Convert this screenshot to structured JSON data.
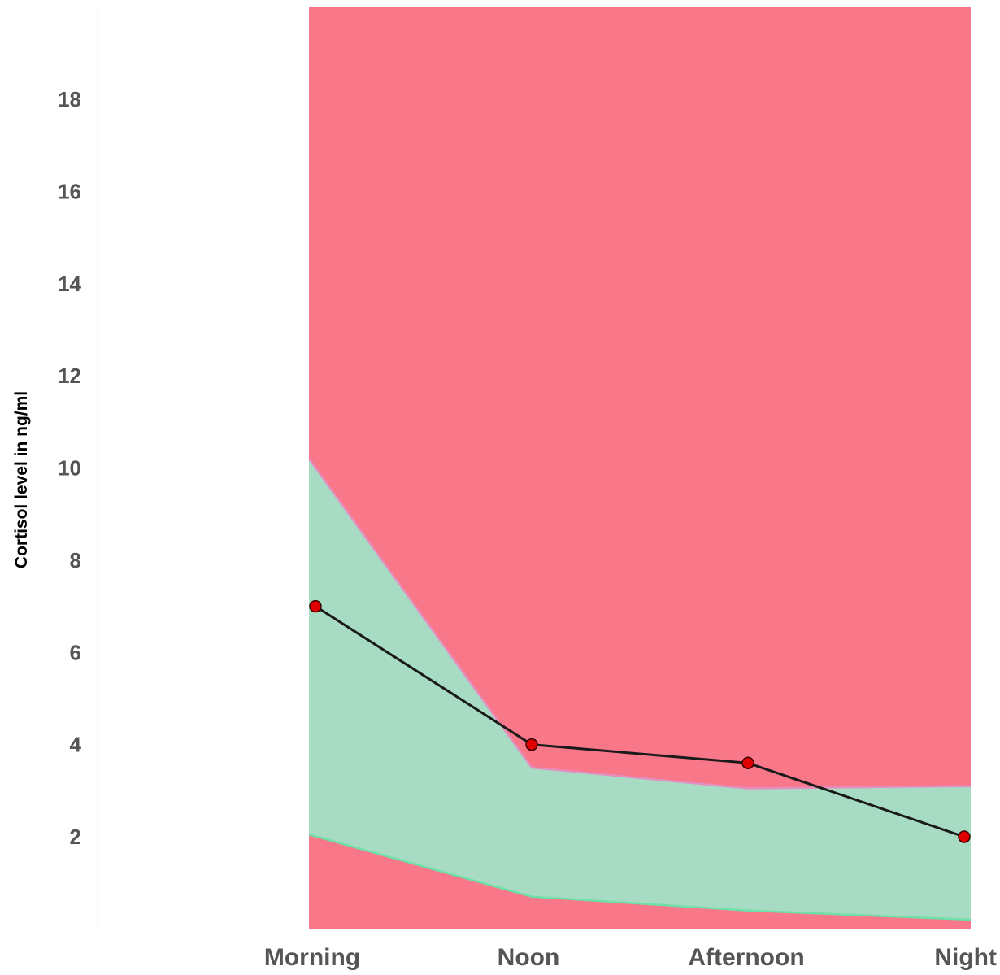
{
  "chart_data": {
    "type": "area",
    "title": "",
    "xlabel": "",
    "ylabel": "Cortisol level in ng/ml",
    "categories": [
      "Morning",
      "Noon",
      "Afternoon",
      "Night"
    ],
    "yticks": [
      2,
      4,
      6,
      8,
      10,
      12,
      14,
      16,
      18
    ],
    "ylim": [
      0,
      20
    ],
    "grid": false,
    "legend": "none",
    "bands": [
      {
        "role": "low-range",
        "color": "#f87788",
        "lower": [
          0,
          0,
          0,
          0
        ],
        "upper": [
          2.05,
          0.7,
          0.4,
          0.2
        ]
      },
      {
        "role": "normal-range",
        "color": "#a7dbc3",
        "lower": [
          2.05,
          0.7,
          0.4,
          0.2
        ],
        "upper": [
          10.2,
          3.5,
          3.05,
          3.1
        ]
      },
      {
        "role": "high-range",
        "color": "#f87788",
        "lower": [
          10.2,
          3.5,
          3.05,
          3.1
        ],
        "upper": [
          20,
          20,
          20,
          20
        ]
      }
    ],
    "series": [
      {
        "values": [
          7.0,
          4.0,
          3.6,
          2.0
        ],
        "line_color": "#1a1a1a",
        "marker_color": "#e00000"
      }
    ]
  }
}
